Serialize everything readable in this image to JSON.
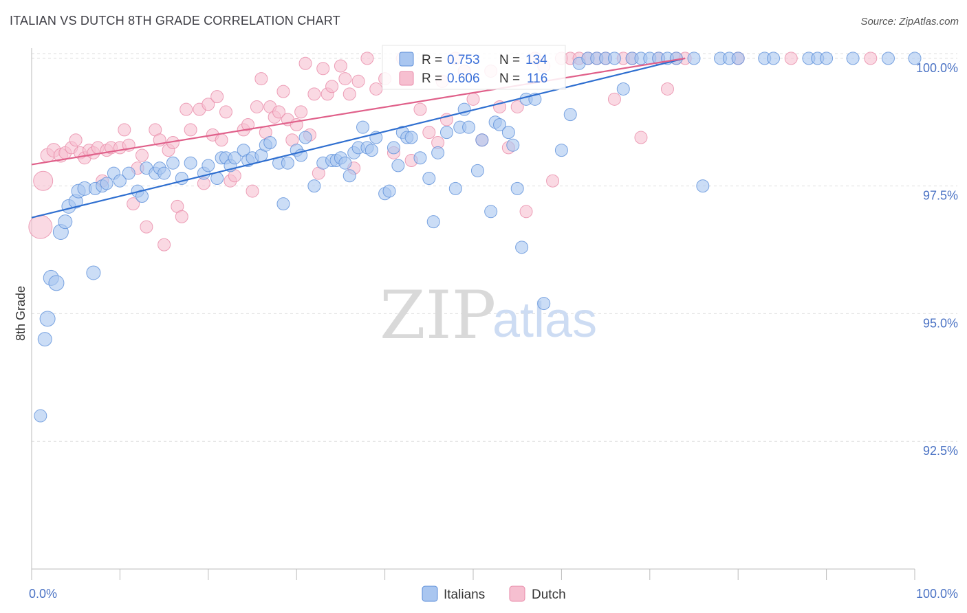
{
  "title": "ITALIAN VS DUTCH 8TH GRADE CORRELATION CHART",
  "source": "Source: ZipAtlas.com",
  "watermark": {
    "zip": "ZIP",
    "atlas": "atlas"
  },
  "legend_top": {
    "italians": {
      "r_label": "R =",
      "r_value": "0.753",
      "n_label": "N =",
      "n_value": "134"
    },
    "dutch": {
      "r_label": "R =",
      "r_value": "0.606",
      "n_label": "N =",
      "n_value": "116"
    }
  },
  "colors": {
    "italians_fill": "#a9c6f0",
    "italians_stroke": "#5b8ed9",
    "italians_line": "#2f6fd0",
    "dutch_fill": "#f6bfd0",
    "dutch_stroke": "#e889a8",
    "dutch_line": "#e0608a",
    "grid": "#dedede",
    "axis": "#bbbbbb",
    "tick_label": "#4a72c4"
  },
  "chart_data": {
    "type": "scatter",
    "title": "ITALIAN VS DUTCH 8TH GRADE CORRELATION CHART",
    "xlabel": "",
    "ylabel": "8th Grade",
    "xlim": [
      0,
      100
    ],
    "ylim": [
      90.0,
      100.2
    ],
    "x_tick_labels": [
      "0.0%",
      "100.0%"
    ],
    "y_ticks": [
      92.5,
      95.0,
      97.5,
      100.0
    ],
    "y_tick_labels": [
      "92.5%",
      "95.0%",
      "97.5%",
      "100.0%"
    ],
    "legend": [
      "Italians",
      "Dutch"
    ],
    "series": [
      {
        "name": "Italians",
        "r": 0.753,
        "n": 134,
        "trend": {
          "x": [
            0,
            74
          ],
          "y": [
            96.88,
            100.0
          ]
        },
        "points": [
          [
            1,
            93.0,
            9
          ],
          [
            1.5,
            94.5,
            10
          ],
          [
            1.8,
            94.9,
            11
          ],
          [
            2.2,
            95.7,
            11
          ],
          [
            2.8,
            95.6,
            11
          ],
          [
            3.3,
            96.6,
            11
          ],
          [
            3.8,
            96.8,
            10
          ],
          [
            4.2,
            97.1,
            10
          ],
          [
            5,
            97.2,
            10
          ],
          [
            5.3,
            97.4,
            10
          ],
          [
            6,
            97.45,
            10
          ],
          [
            7,
            95.8,
            10
          ],
          [
            7.2,
            97.45,
            9
          ],
          [
            8,
            97.5,
            9
          ],
          [
            8.5,
            97.55,
            9
          ],
          [
            9.3,
            97.75,
            9
          ],
          [
            10,
            97.6,
            9
          ],
          [
            11,
            97.75,
            9
          ],
          [
            12,
            97.4,
            9
          ],
          [
            12.5,
            97.3,
            9
          ],
          [
            13,
            97.85,
            9
          ],
          [
            14,
            97.75,
            9
          ],
          [
            14.5,
            97.85,
            9
          ],
          [
            15,
            97.75,
            9
          ],
          [
            16,
            97.95,
            9
          ],
          [
            17,
            97.65,
            9
          ],
          [
            18,
            97.95,
            9
          ],
          [
            19.5,
            97.75,
            9
          ],
          [
            20,
            97.9,
            9
          ],
          [
            21,
            97.65,
            9
          ],
          [
            21.5,
            98.05,
            9
          ],
          [
            22,
            98.05,
            9
          ],
          [
            22.5,
            97.9,
            9
          ],
          [
            23,
            98.05,
            9
          ],
          [
            24,
            98.2,
            9
          ],
          [
            24.5,
            98.0,
            9
          ],
          [
            25,
            98.05,
            9
          ],
          [
            26,
            98.1,
            9
          ],
          [
            26.5,
            98.3,
            9
          ],
          [
            27,
            98.35,
            9
          ],
          [
            28,
            97.95,
            9
          ],
          [
            28.5,
            97.15,
            9
          ],
          [
            29,
            97.95,
            9
          ],
          [
            30,
            98.2,
            9
          ],
          [
            30.5,
            98.1,
            9
          ],
          [
            31,
            98.45,
            9
          ],
          [
            32,
            97.5,
            9
          ],
          [
            33,
            97.95,
            9
          ],
          [
            34,
            98.0,
            9
          ],
          [
            34.5,
            98.0,
            9
          ],
          [
            35,
            98.05,
            9
          ],
          [
            35.5,
            97.95,
            9
          ],
          [
            36,
            97.7,
            9
          ],
          [
            36.5,
            98.15,
            9
          ],
          [
            37,
            98.25,
            9
          ],
          [
            37.5,
            98.65,
            9
          ],
          [
            38,
            98.25,
            9
          ],
          [
            38.5,
            98.2,
            9
          ],
          [
            39,
            98.45,
            9
          ],
          [
            40,
            97.35,
            9
          ],
          [
            40.5,
            97.4,
            9
          ],
          [
            41,
            98.25,
            9
          ],
          [
            41.5,
            97.9,
            9
          ],
          [
            42,
            98.55,
            9
          ],
          [
            42.5,
            98.45,
            9
          ],
          [
            43,
            98.45,
            9
          ],
          [
            44,
            98.05,
            9
          ],
          [
            45,
            97.65,
            9
          ],
          [
            45.5,
            96.8,
            9
          ],
          [
            46,
            98.15,
            9
          ],
          [
            47,
            98.55,
            9
          ],
          [
            48,
            97.45,
            9
          ],
          [
            48.5,
            98.65,
            9
          ],
          [
            49,
            99.0,
            9
          ],
          [
            49.5,
            98.65,
            9
          ],
          [
            50.5,
            97.8,
            9
          ],
          [
            51,
            98.4,
            9
          ],
          [
            52,
            97.0,
            9
          ],
          [
            52.5,
            98.75,
            9
          ],
          [
            53,
            98.7,
            9
          ],
          [
            54,
            98.55,
            9
          ],
          [
            54.5,
            98.3,
            9
          ],
          [
            55,
            97.45,
            9
          ],
          [
            55.5,
            96.3,
            9
          ],
          [
            56,
            99.2,
            9
          ],
          [
            57,
            99.2,
            9
          ],
          [
            58,
            95.2,
            9
          ],
          [
            60,
            98.2,
            9
          ],
          [
            61,
            98.9,
            9
          ],
          [
            62,
            99.9,
            9
          ],
          [
            63,
            100.0,
            9
          ],
          [
            64,
            100.0,
            9
          ],
          [
            65,
            100.0,
            9
          ],
          [
            66,
            100.0,
            9
          ],
          [
            67,
            99.4,
            9
          ],
          [
            68,
            100.0,
            9
          ],
          [
            69,
            100.0,
            9
          ],
          [
            70,
            100.0,
            9
          ],
          [
            71,
            100.0,
            9
          ],
          [
            72,
            100.0,
            9
          ],
          [
            73,
            100.0,
            9
          ],
          [
            75,
            100.0,
            9
          ],
          [
            76,
            97.5,
            9
          ],
          [
            78,
            100.0,
            9
          ],
          [
            79,
            100.0,
            9
          ],
          [
            80,
            100.0,
            9
          ],
          [
            83,
            100.0,
            9
          ],
          [
            84,
            100.0,
            9
          ],
          [
            88,
            100.0,
            9
          ],
          [
            89,
            100.0,
            9
          ],
          [
            90,
            100.0,
            9
          ],
          [
            93,
            100.0,
            9
          ],
          [
            97,
            100.0,
            9
          ],
          [
            100,
            100.0,
            9
          ]
        ]
      },
      {
        "name": "Dutch",
        "r": 0.606,
        "n": 116,
        "trend": {
          "x": [
            0,
            74
          ],
          "y": [
            97.92,
            100.0
          ]
        },
        "points": [
          [
            1,
            96.7,
            17
          ],
          [
            1.3,
            97.6,
            14
          ],
          [
            1.8,
            98.1,
            10
          ],
          [
            2.5,
            98.2,
            10
          ],
          [
            3.3,
            98.1,
            10
          ],
          [
            3.8,
            98.15,
            9
          ],
          [
            4.5,
            98.25,
            9
          ],
          [
            5,
            98.4,
            9
          ],
          [
            5.5,
            98.15,
            9
          ],
          [
            6,
            98.05,
            9
          ],
          [
            6.5,
            98.2,
            9
          ],
          [
            7,
            98.15,
            9
          ],
          [
            7.5,
            98.25,
            9
          ],
          [
            8,
            97.6,
            9
          ],
          [
            8.5,
            98.2,
            9
          ],
          [
            9,
            98.25,
            9
          ],
          [
            10,
            98.25,
            9
          ],
          [
            10.5,
            98.6,
            9
          ],
          [
            11,
            98.3,
            9
          ],
          [
            11.5,
            97.15,
            9
          ],
          [
            12,
            97.85,
            9
          ],
          [
            12.5,
            98.1,
            9
          ],
          [
            13,
            96.7,
            9
          ],
          [
            14,
            98.6,
            9
          ],
          [
            14.5,
            98.4,
            9
          ],
          [
            15,
            96.35,
            9
          ],
          [
            15.5,
            98.2,
            9
          ],
          [
            16,
            98.35,
            9
          ],
          [
            16.5,
            97.1,
            9
          ],
          [
            17,
            96.9,
            9
          ],
          [
            17.5,
            99.0,
            9
          ],
          [
            18,
            98.6,
            9
          ],
          [
            19,
            99.0,
            9
          ],
          [
            19.5,
            97.55,
            9
          ],
          [
            20,
            99.1,
            9
          ],
          [
            20.5,
            98.5,
            9
          ],
          [
            21,
            99.25,
            9
          ],
          [
            21.5,
            98.4,
            9
          ],
          [
            22,
            98.95,
            9
          ],
          [
            22.5,
            97.6,
            9
          ],
          [
            23,
            97.7,
            9
          ],
          [
            24,
            98.6,
            9
          ],
          [
            24.5,
            98.7,
            9
          ],
          [
            25,
            97.4,
            9
          ],
          [
            25.5,
            99.05,
            9
          ],
          [
            26,
            99.6,
            9
          ],
          [
            26.5,
            98.55,
            9
          ],
          [
            27,
            99.05,
            9
          ],
          [
            27.5,
            98.85,
            9
          ],
          [
            28,
            98.95,
            9
          ],
          [
            28.5,
            99.35,
            9
          ],
          [
            29,
            98.8,
            9
          ],
          [
            29.5,
            98.4,
            9
          ],
          [
            30,
            98.7,
            9
          ],
          [
            30.5,
            98.95,
            9
          ],
          [
            31,
            99.9,
            9
          ],
          [
            31.5,
            98.5,
            9
          ],
          [
            32,
            99.3,
            9
          ],
          [
            32.5,
            97.75,
            9
          ],
          [
            33,
            99.8,
            9
          ],
          [
            33.5,
            99.3,
            9
          ],
          [
            34,
            99.45,
            9
          ],
          [
            35,
            99.85,
            9
          ],
          [
            35.5,
            99.6,
            9
          ],
          [
            36,
            99.3,
            9
          ],
          [
            36.5,
            97.85,
            9
          ],
          [
            37,
            99.55,
            9
          ],
          [
            38,
            100.0,
            9
          ],
          [
            39,
            99.4,
            9
          ],
          [
            40,
            99.6,
            9
          ],
          [
            41,
            98.15,
            9
          ],
          [
            42,
            100.0,
            9
          ],
          [
            43,
            98.0,
            9
          ],
          [
            44,
            99.0,
            9
          ],
          [
            45,
            98.55,
            9
          ],
          [
            46,
            98.35,
            9
          ],
          [
            46.5,
            99.55,
            9
          ],
          [
            47,
            98.8,
            9
          ],
          [
            48,
            100.0,
            9
          ],
          [
            49,
            99.75,
            9
          ],
          [
            50,
            99.2,
            9
          ],
          [
            51,
            98.4,
            9
          ],
          [
            52,
            99.75,
            9
          ],
          [
            53,
            99.05,
            9
          ],
          [
            54,
            98.25,
            9
          ],
          [
            55,
            99.05,
            9
          ],
          [
            56,
            97.0,
            9
          ],
          [
            57,
            100.0,
            9
          ],
          [
            58,
            99.85,
            9
          ],
          [
            59,
            97.6,
            9
          ],
          [
            60,
            100.0,
            9
          ],
          [
            61,
            100.0,
            9
          ],
          [
            62,
            100.0,
            9
          ],
          [
            63,
            100.0,
            9
          ],
          [
            64,
            100.0,
            9
          ],
          [
            65,
            100.0,
            9
          ],
          [
            66,
            99.2,
            9
          ],
          [
            67,
            100.0,
            9
          ],
          [
            68,
            100.0,
            9
          ],
          [
            69,
            98.45,
            9
          ],
          [
            71,
            100.0,
            9
          ],
          [
            72,
            99.4,
            9
          ],
          [
            73,
            100.0,
            9
          ],
          [
            74,
            100.0,
            9
          ],
          [
            80,
            100.0,
            9
          ],
          [
            86,
            100.0,
            9
          ],
          [
            95,
            100.0,
            9
          ]
        ]
      }
    ]
  }
}
